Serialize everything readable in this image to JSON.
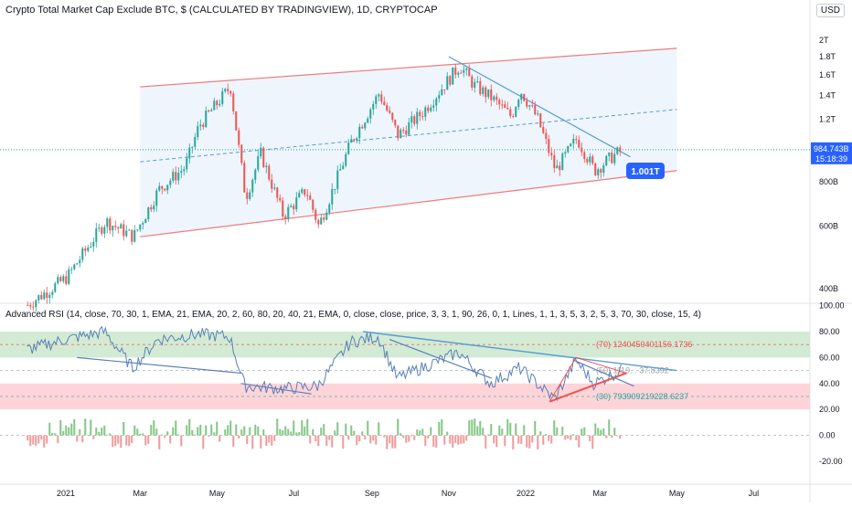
{
  "chart_title": "Crypto Total Market Cap Exclude BTC, $ (CALCULATED BY TRADINGVIEW), 1D, CRYPTOCAP",
  "currency_button": "USD",
  "indicator_title": "Advanced RSI (14, close, 70, 30, 1, EMA, 21, EMA, 20, 2, 60, 80, 20, 40, 21, EMA, 0, close, close, price, 3, 3, 1, 90, 26, 0, 1, Lines, 1, 1, 3, 5, 3, 2, 5, 3, 70, 30, close, 15, 4)",
  "colors": {
    "channel_line": "#f07a7a",
    "channel_fill": "#eef5fd",
    "trendline": "#5b9bd5",
    "price_up": "#26a69a",
    "price_down": "#ef5350",
    "current_price_bg": "#2962ff",
    "callout_bg": "#2962ff",
    "rsi_upper_band": "#c8e6c9",
    "rsi_lower_band": "#ffcdd2",
    "rsi_line": "#5b7fb8",
    "hist_up": "#81c784",
    "hist_down": "#ef9a9a"
  },
  "chart_data": [
    {
      "type": "candlestick",
      "y_scale": "log",
      "y_ticks": [
        "2T",
        "1.8T",
        "1.6T",
        "1.4T",
        "1.2T",
        "800B",
        "600B",
        "400B"
      ],
      "y_tick_values": [
        2000,
        1800,
        1600,
        1400,
        1200,
        800,
        600,
        400
      ],
      "x_ticks": [
        "2021",
        "Mar",
        "May",
        "Jul",
        "Sep",
        "Nov",
        "2022",
        "Mar",
        "May",
        "Jul"
      ],
      "current_price": "984.743B",
      "countdown": "15:18:39",
      "callout": "1.001T",
      "path_points": [
        {
          "date": "2020-12-01",
          "value": 360
        },
        {
          "date": "2021-01-01",
          "value": 430
        },
        {
          "date": "2021-02-01",
          "value": 620
        },
        {
          "date": "2021-02-23",
          "value": 560
        },
        {
          "date": "2021-03-15",
          "value": 760
        },
        {
          "date": "2021-04-05",
          "value": 880
        },
        {
          "date": "2021-04-16",
          "value": 1150
        },
        {
          "date": "2021-05-11",
          "value": 1480
        },
        {
          "date": "2021-05-23",
          "value": 720
        },
        {
          "date": "2021-06-04",
          "value": 960
        },
        {
          "date": "2021-06-22",
          "value": 640
        },
        {
          "date": "2021-07-10",
          "value": 760
        },
        {
          "date": "2021-07-20",
          "value": 600
        },
        {
          "date": "2021-08-15",
          "value": 1040
        },
        {
          "date": "2021-09-06",
          "value": 1420
        },
        {
          "date": "2021-09-21",
          "value": 1080
        },
        {
          "date": "2021-10-10",
          "value": 1250
        },
        {
          "date": "2021-11-09",
          "value": 1700
        },
        {
          "date": "2021-11-20",
          "value": 1500
        },
        {
          "date": "2021-12-04",
          "value": 1380
        },
        {
          "date": "2021-12-20",
          "value": 1220
        },
        {
          "date": "2021-12-27",
          "value": 1450
        },
        {
          "date": "2022-01-10",
          "value": 1200
        },
        {
          "date": "2022-01-24",
          "value": 860
        },
        {
          "date": "2022-02-10",
          "value": 1060
        },
        {
          "date": "2022-02-24",
          "value": 860
        },
        {
          "date": "2022-03-08",
          "value": 930
        },
        {
          "date": "2022-03-18",
          "value": 985
        }
      ]
    },
    {
      "type": "line",
      "name": "Advanced RSI",
      "y_ticks": [
        "100.00",
        "80.00",
        "60.00",
        "40.00",
        "20.00",
        "0.00",
        "-20.00"
      ],
      "y_tick_values": [
        100,
        80,
        60,
        40,
        20,
        0,
        -20
      ],
      "band_labels": {
        "upper": "(70)  1240450401156.1736",
        "middle": "(50)  1119... 37.8392",
        "lower": "(30)  793909219228.6237"
      },
      "rsi_points": [
        {
          "date": "2020-12-01",
          "value": 66
        },
        {
          "date": "2021-01-01",
          "value": 74
        },
        {
          "date": "2021-02-01",
          "value": 80
        },
        {
          "date": "2021-02-23",
          "value": 52
        },
        {
          "date": "2021-03-15",
          "value": 74
        },
        {
          "date": "2021-04-16",
          "value": 78
        },
        {
          "date": "2021-05-11",
          "value": 76
        },
        {
          "date": "2021-05-23",
          "value": 38
        },
        {
          "date": "2021-06-22",
          "value": 36
        },
        {
          "date": "2021-07-20",
          "value": 38
        },
        {
          "date": "2021-08-15",
          "value": 72
        },
        {
          "date": "2021-09-06",
          "value": 76
        },
        {
          "date": "2021-09-21",
          "value": 44
        },
        {
          "date": "2021-11-09",
          "value": 64
        },
        {
          "date": "2021-12-04",
          "value": 40
        },
        {
          "date": "2021-12-27",
          "value": 52
        },
        {
          "date": "2022-01-24",
          "value": 28
        },
        {
          "date": "2022-02-10",
          "value": 58
        },
        {
          "date": "2022-02-24",
          "value": 40
        },
        {
          "date": "2022-03-18",
          "value": 50
        }
      ]
    }
  ]
}
